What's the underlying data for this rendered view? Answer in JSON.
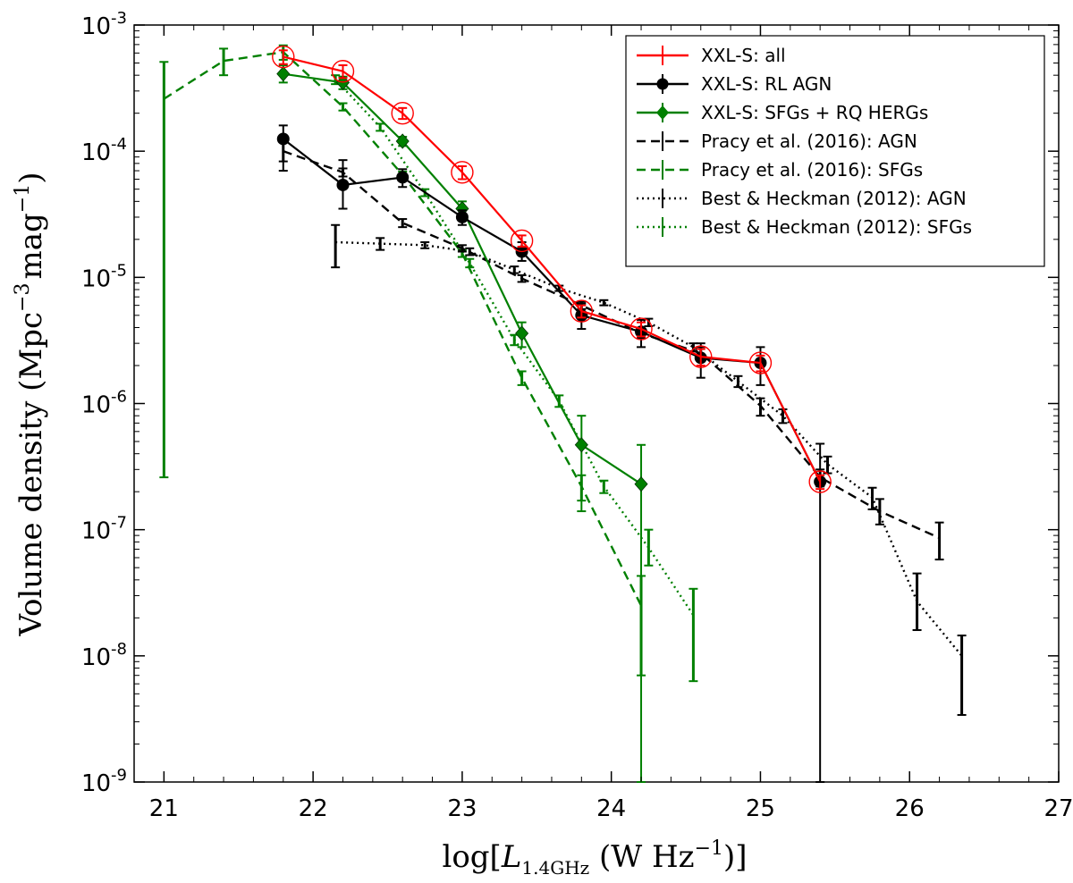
{
  "chart_data": {
    "type": "line",
    "xlabel": "log[L_1.4GHz (W Hz^-1)]",
    "ylabel": "Volume density (Mpc^-3 mag^-1)",
    "xlim": [
      20.8,
      27
    ],
    "ylim_log10": [
      -9,
      -3
    ],
    "yscale": "log",
    "legend_position": "top-right",
    "x_ticks": [
      "21",
      "22",
      "23",
      "24",
      "25",
      "26",
      "27"
    ],
    "y_ticks": [
      {
        "base": "10",
        "exp": "-3"
      },
      {
        "base": "10",
        "exp": "-4"
      },
      {
        "base": "10",
        "exp": "-5"
      },
      {
        "base": "10",
        "exp": "-6"
      },
      {
        "base": "10",
        "exp": "-7"
      },
      {
        "base": "10",
        "exp": "-8"
      },
      {
        "base": "10",
        "exp": "-9"
      }
    ],
    "axis_label_parts": {
      "x": {
        "open": "log[",
        "L": "L",
        "sub": "1.4GHz",
        "units": " (W Hz",
        "exp": "−1",
        "close": ")]"
      },
      "y": {
        "main": "Volume density (Mpc",
        "exp1": "−3",
        "mid": "mag",
        "exp2": "−1",
        "close": ")"
      }
    },
    "series": [
      {
        "name": "XXL-S: all",
        "color": "#ff0000",
        "linestyle": "solid",
        "marker": "open-circle",
        "x": [
          21.8,
          22.2,
          22.6,
          23.0,
          23.4,
          23.8,
          24.2,
          24.6,
          25.0,
          25.4
        ],
        "y": [
          0.00056,
          0.00043,
          0.0002,
          6.8e-05,
          1.95e-05,
          5.4e-06,
          3.9e-06,
          2.35e-06,
          2.1e-06,
          2.4e-07
        ],
        "ylo": [
          0.00049,
          0.00038,
          0.00018,
          6e-05,
          1.75e-05,
          4.8e-06,
          3.4e-06,
          2e-06,
          1.8e-06,
          2.1e-07
        ],
        "yhi": [
          0.00063,
          0.00048,
          0.00022,
          7.6e-05,
          2.15e-05,
          6e-06,
          4.4e-06,
          2.7e-06,
          2.4e-06,
          2.7e-07
        ]
      },
      {
        "name": "XXL-S: RL AGN",
        "color": "#000000",
        "linestyle": "solid",
        "marker": "filled-circle",
        "x": [
          21.8,
          22.2,
          22.6,
          23.0,
          23.4,
          23.8,
          24.2,
          24.6,
          25.0,
          25.4
        ],
        "y": [
          0.000125,
          5.4e-05,
          6.2e-05,
          3e-05,
          1.6e-05,
          5e-06,
          3.7e-06,
          2.3e-06,
          2.1e-06,
          2.4e-07
        ],
        "ylo": [
          7e-05,
          3.5e-05,
          5.2e-05,
          2.6e-05,
          1.35e-05,
          3.9e-06,
          2.8e-06,
          1.6e-06,
          1.4e-06,
          1e-09
        ],
        "yhi": [
          0.00016,
          8.5e-05,
          7.2e-05,
          3.4e-05,
          1.9e-05,
          6.2e-06,
          4.6e-06,
          3e-06,
          2.8e-06,
          4.8e-07
        ]
      },
      {
        "name": "XXL-S: SFGs + RQ HERGs",
        "color": "#008000",
        "linestyle": "solid",
        "marker": "filled-diamond",
        "x": [
          21.8,
          22.2,
          22.6,
          23.0,
          23.4,
          23.8,
          24.2
        ],
        "y": [
          0.00041,
          0.00035,
          0.00012,
          3.5e-05,
          3.6e-06,
          4.7e-07,
          2.3e-07
        ],
        "ylo": [
          0.00035,
          0.00031,
          0.00011,
          3e-05,
          2.8e-06,
          1.4e-07,
          1e-09
        ],
        "yhi": [
          0.00048,
          0.00039,
          0.00013,
          4e-05,
          4.4e-06,
          8e-07,
          4.7e-07
        ]
      },
      {
        "name": "Pracy et al. (2016): AGN",
        "color": "#000000",
        "linestyle": "dashed",
        "marker": "none",
        "x": [
          21.8,
          22.2,
          22.6,
          23.0,
          23.4,
          23.8,
          24.2,
          24.6,
          25.0,
          25.4,
          25.8,
          26.2
        ],
        "y": [
          0.0001,
          6.8e-05,
          2.7e-05,
          1.7e-05,
          9.8e-06,
          6e-06,
          3.6e-06,
          2.5e-06,
          9.6e-07,
          2.6e-07,
          1.4e-07,
          8.6e-08
        ],
        "ylo": [
          8.3e-05,
          6.3e-05,
          2.5e-05,
          1.6e-05,
          9.2e-06,
          5.6e-06,
          3.3e-06,
          2.2e-06,
          8e-07,
          2.2e-07,
          1.1e-07,
          5.8e-08
        ],
        "yhi": [
          0.00012,
          7.3e-05,
          2.9e-05,
          1.8e-05,
          1.04e-05,
          6.4e-06,
          3.9e-06,
          2.8e-06,
          1.1e-06,
          3e-07,
          1.75e-07,
          1.14e-07
        ]
      },
      {
        "name": "Pracy et al. (2016): SFGs",
        "color": "#008000",
        "linestyle": "dashed",
        "marker": "none",
        "x": [
          21.0,
          21.4,
          21.8,
          22.2,
          22.6,
          23.0,
          23.4,
          23.8,
          24.2
        ],
        "y": [
          0.00026,
          0.00052,
          0.00061,
          0.000225,
          6.5e-05,
          1.55e-05,
          1.6e-06,
          2.2e-07,
          2.5e-08
        ],
        "ylo": [
          2.6e-07,
          0.0004,
          0.00053,
          0.00021,
          6.1e-05,
          1.45e-05,
          1.4e-06,
          1.7e-07,
          7e-09
        ],
        "yhi": [
          0.00051,
          0.00065,
          0.00069,
          0.00024,
          6.9e-05,
          1.65e-05,
          1.8e-06,
          2.7e-07,
          4.3e-08
        ]
      },
      {
        "name": "Best & Heckman (2012): AGN",
        "color": "#000000",
        "linestyle": "dotted",
        "marker": "none",
        "x": [
          22.15,
          22.45,
          22.75,
          23.05,
          23.35,
          23.65,
          23.95,
          24.25,
          24.55,
          24.85,
          25.15,
          25.45,
          25.75,
          26.05,
          26.35
        ],
        "y": [
          1.9e-05,
          1.85e-05,
          1.8e-05,
          1.6e-05,
          1.15e-05,
          8.2e-06,
          6.3e-06,
          4.4e-06,
          2.8e-06,
          1.5e-06,
          8e-07,
          3.3e-07,
          1.8e-07,
          2.7e-08,
          1e-08
        ],
        "ylo": [
          1.2e-05,
          1.65e-05,
          1.7e-05,
          1.5e-05,
          1.08e-05,
          7.8e-06,
          6e-06,
          4.1e-06,
          2.6e-06,
          1.35e-06,
          7e-07,
          2.8e-07,
          1.45e-07,
          1.6e-08,
          3.4e-09
        ],
        "yhi": [
          2.6e-05,
          2.05e-05,
          1.9e-05,
          1.7e-05,
          1.22e-05,
          8.6e-06,
          6.6e-06,
          4.7e-06,
          3e-06,
          1.65e-06,
          9e-07,
          3.8e-07,
          2.15e-07,
          4.5e-08,
          1.45e-08
        ]
      },
      {
        "name": "Best & Heckman (2012): SFGs",
        "color": "#008000",
        "linestyle": "dotted",
        "marker": "none",
        "x": [
          22.15,
          22.45,
          22.75,
          23.05,
          23.35,
          23.65,
          23.95,
          24.25,
          24.55
        ],
        "y": [
          0.00037,
          0.000155,
          4.7e-05,
          1.3e-05,
          3.2e-06,
          1.05e-06,
          2.2e-07,
          7.2e-08,
          2.1e-08
        ],
        "ylo": [
          0.00034,
          0.000145,
          4.4e-05,
          1.2e-05,
          2.9e-06,
          9.4e-07,
          1.95e-07,
          5.2e-08,
          6.3e-09
        ],
        "yhi": [
          0.0004,
          0.000165,
          5e-05,
          1.4e-05,
          3.5e-06,
          1.16e-06,
          2.45e-07,
          1e-07,
          3.4e-08
        ]
      }
    ]
  }
}
